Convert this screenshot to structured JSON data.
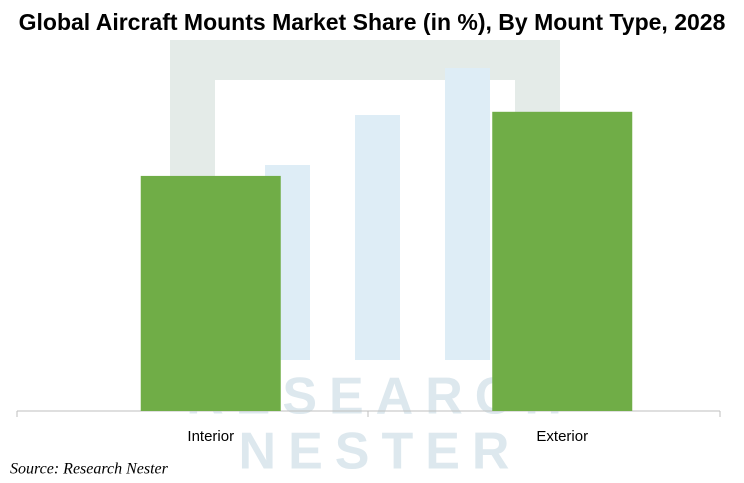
{
  "chart_data": {
    "type": "bar",
    "title": "Global Aircraft Mounts Market Share (in %), By Mount Type, 2028",
    "categories": [
      "Interior",
      "Exterior"
    ],
    "values": [
      44,
      56
    ],
    "color": "#70ad47",
    "ylim": [
      0,
      70
    ],
    "watermark": [
      "RESEARCH",
      "NESTER"
    ],
    "source": "Source: Research Nester"
  }
}
